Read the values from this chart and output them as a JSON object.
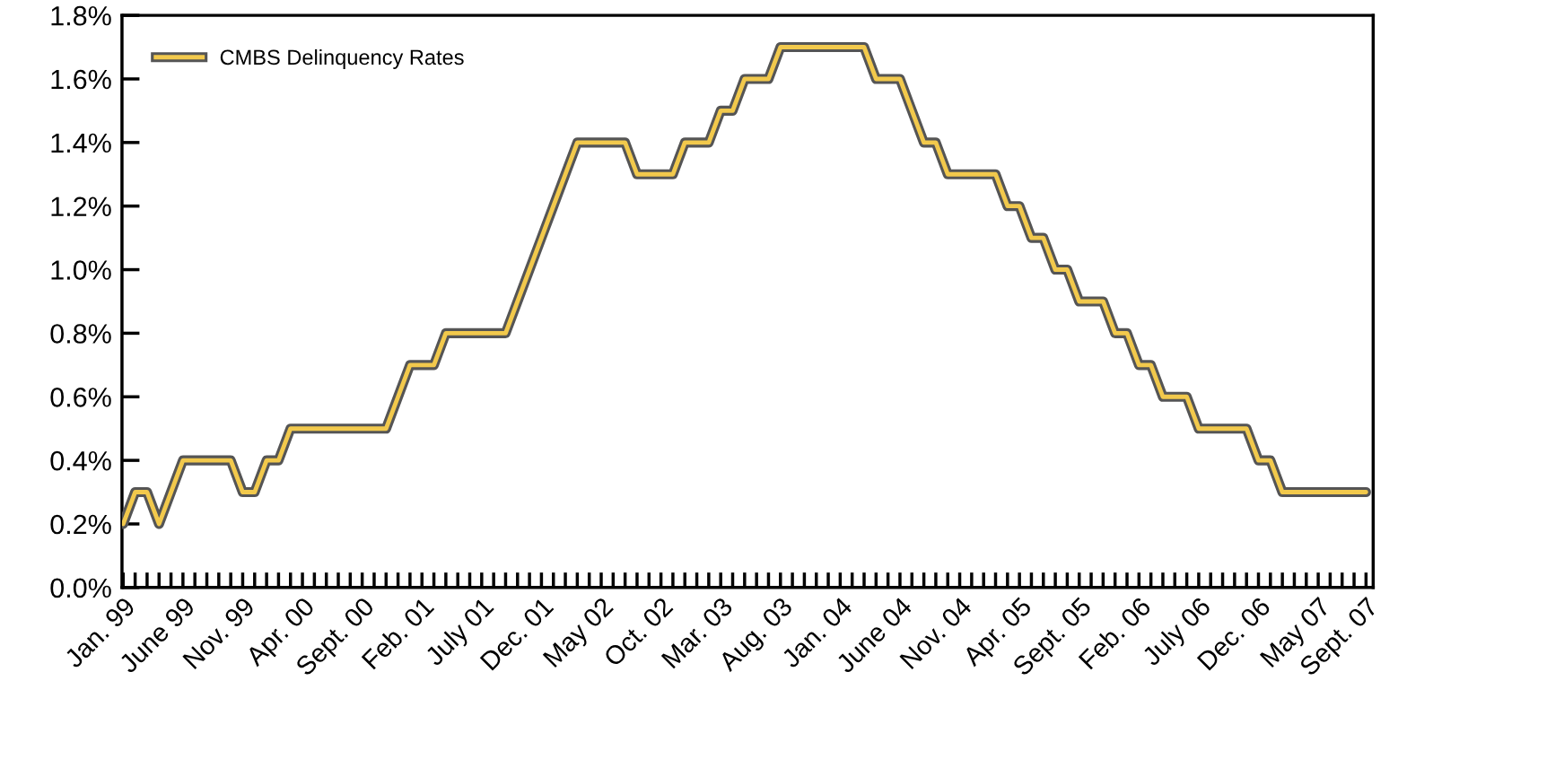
{
  "chart_data": {
    "type": "line",
    "categories": [
      "Jan. 99",
      null,
      null,
      null,
      null,
      "June 99",
      null,
      null,
      null,
      null,
      "Nov. 99",
      null,
      null,
      null,
      null,
      "Apr. 00",
      null,
      null,
      null,
      null,
      "Sept. 00",
      null,
      null,
      null,
      null,
      "Feb. 01",
      null,
      null,
      null,
      null,
      "July 01",
      null,
      null,
      null,
      null,
      "Dec. 01",
      null,
      null,
      null,
      null,
      "May 02",
      null,
      null,
      null,
      null,
      "Oct. 02",
      null,
      null,
      null,
      null,
      "Mar. 03",
      null,
      null,
      null,
      null,
      "Aug. 03",
      null,
      null,
      null,
      null,
      "Jan. 04",
      null,
      null,
      null,
      null,
      "June 04",
      null,
      null,
      null,
      null,
      "Nov. 04",
      null,
      null,
      null,
      null,
      "Apr. 05",
      null,
      null,
      null,
      null,
      "Sept. 05",
      null,
      null,
      null,
      null,
      "Feb. 06",
      null,
      null,
      null,
      null,
      "July 06",
      null,
      null,
      null,
      null,
      "Dec. 06",
      null,
      null,
      null,
      null,
      "May 07",
      null,
      null,
      null,
      "Sept. 07"
    ],
    "series": [
      {
        "name": "CMBS Delinquency Rates",
        "color": "#f2c94c",
        "values": [
          0.2,
          0.3,
          0.3,
          0.2,
          0.3,
          0.4,
          0.4,
          0.4,
          0.4,
          0.4,
          0.3,
          0.3,
          0.4,
          0.4,
          0.5,
          0.5,
          0.5,
          0.5,
          0.5,
          0.5,
          0.5,
          0.5,
          0.5,
          0.6,
          0.7,
          0.7,
          0.7,
          0.8,
          0.8,
          0.8,
          0.8,
          0.8,
          0.8,
          0.9,
          1.0,
          1.1,
          1.2,
          1.3,
          1.4,
          1.4,
          1.4,
          1.4,
          1.4,
          1.3,
          1.3,
          1.3,
          1.3,
          1.4,
          1.4,
          1.4,
          1.5,
          1.5,
          1.6,
          1.6,
          1.6,
          1.7,
          1.7,
          1.7,
          1.7,
          1.7,
          1.7,
          1.7,
          1.7,
          1.6,
          1.6,
          1.6,
          1.5,
          1.4,
          1.4,
          1.3,
          1.3,
          1.3,
          1.3,
          1.3,
          1.2,
          1.2,
          1.1,
          1.1,
          1.0,
          1.0,
          0.9,
          0.9,
          0.9,
          0.8,
          0.8,
          0.7,
          0.7,
          0.6,
          0.6,
          0.6,
          0.5,
          0.5,
          0.5,
          0.5,
          0.5,
          0.4,
          0.4,
          0.3,
          0.3,
          0.3,
          0.3,
          0.3,
          0.3,
          0.3,
          0.3
        ]
      }
    ],
    "ylim": [
      0,
      1.8
    ],
    "yticks": [
      {
        "value": 0,
        "label": "0.0%"
      },
      {
        "value": 0.2,
        "label": "0.2%"
      },
      {
        "value": 0.4,
        "label": "0.4%"
      },
      {
        "value": 0.6,
        "label": "0.6%"
      },
      {
        "value": 0.8,
        "label": "0.8%"
      },
      {
        "value": 1.0,
        "label": "1.0%"
      },
      {
        "value": 1.2,
        "label": "1.2%"
      },
      {
        "value": 1.4,
        "label": "1.4%"
      },
      {
        "value": 1.6,
        "label": "1.6%"
      },
      {
        "value": 1.8,
        "label": "1.8%"
      }
    ],
    "legend": "top left",
    "grid": false,
    "marker": "none",
    "line_style": "solid"
  }
}
